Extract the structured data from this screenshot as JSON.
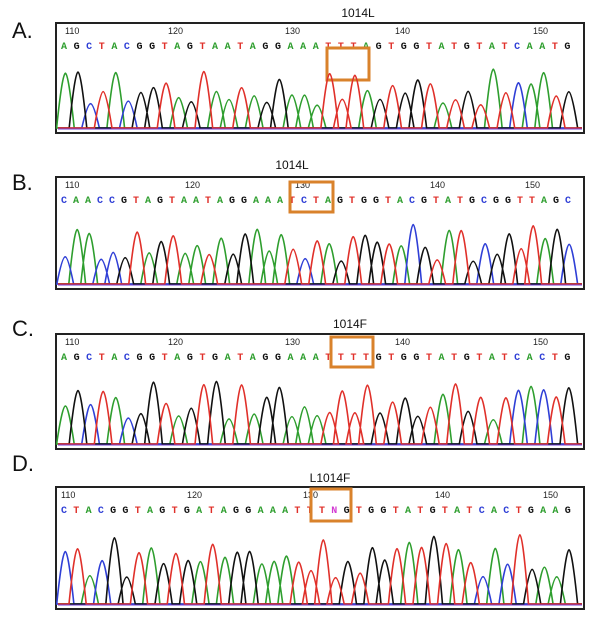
{
  "colors": {
    "A": "#2e9e2e",
    "C": "#2f3fd6",
    "G": "#111111",
    "T": "#e0302a",
    "N": "#d23ad2",
    "box": "#d9822b",
    "frame": "#222222"
  },
  "panels": [
    {
      "letter": "A.",
      "title": "1014L",
      "ticks": [
        "110",
        "120",
        "130",
        "140",
        "150"
      ],
      "sequence": "AGCTACGGTAGTAATAGGAAATTTAGTGGTATGTATCAATG"
    },
    {
      "letter": "B.",
      "title": "1014L",
      "ticks": [
        "110",
        "120",
        "130",
        "140",
        "150"
      ],
      "sequence": "CAACCGTAGTAATAGGAAATCTAGTGGTACGTATGCGGTTAGC"
    },
    {
      "letter": "C.",
      "title": "1014F",
      "ticks": [
        "110",
        "120",
        "130",
        "140",
        "150"
      ],
      "sequence": "AGCTACGGTAGTGATAGGAAATTTTGTGGTATGTATCACTG"
    },
    {
      "letter": "D.",
      "title": "L1014F",
      "ticks": [
        "110",
        "120",
        "130",
        "140",
        "150"
      ],
      "sequence": "CTACGGTAGTGATAGGAAATTTNGTGGTATGTATCACTGAAG"
    }
  ]
}
